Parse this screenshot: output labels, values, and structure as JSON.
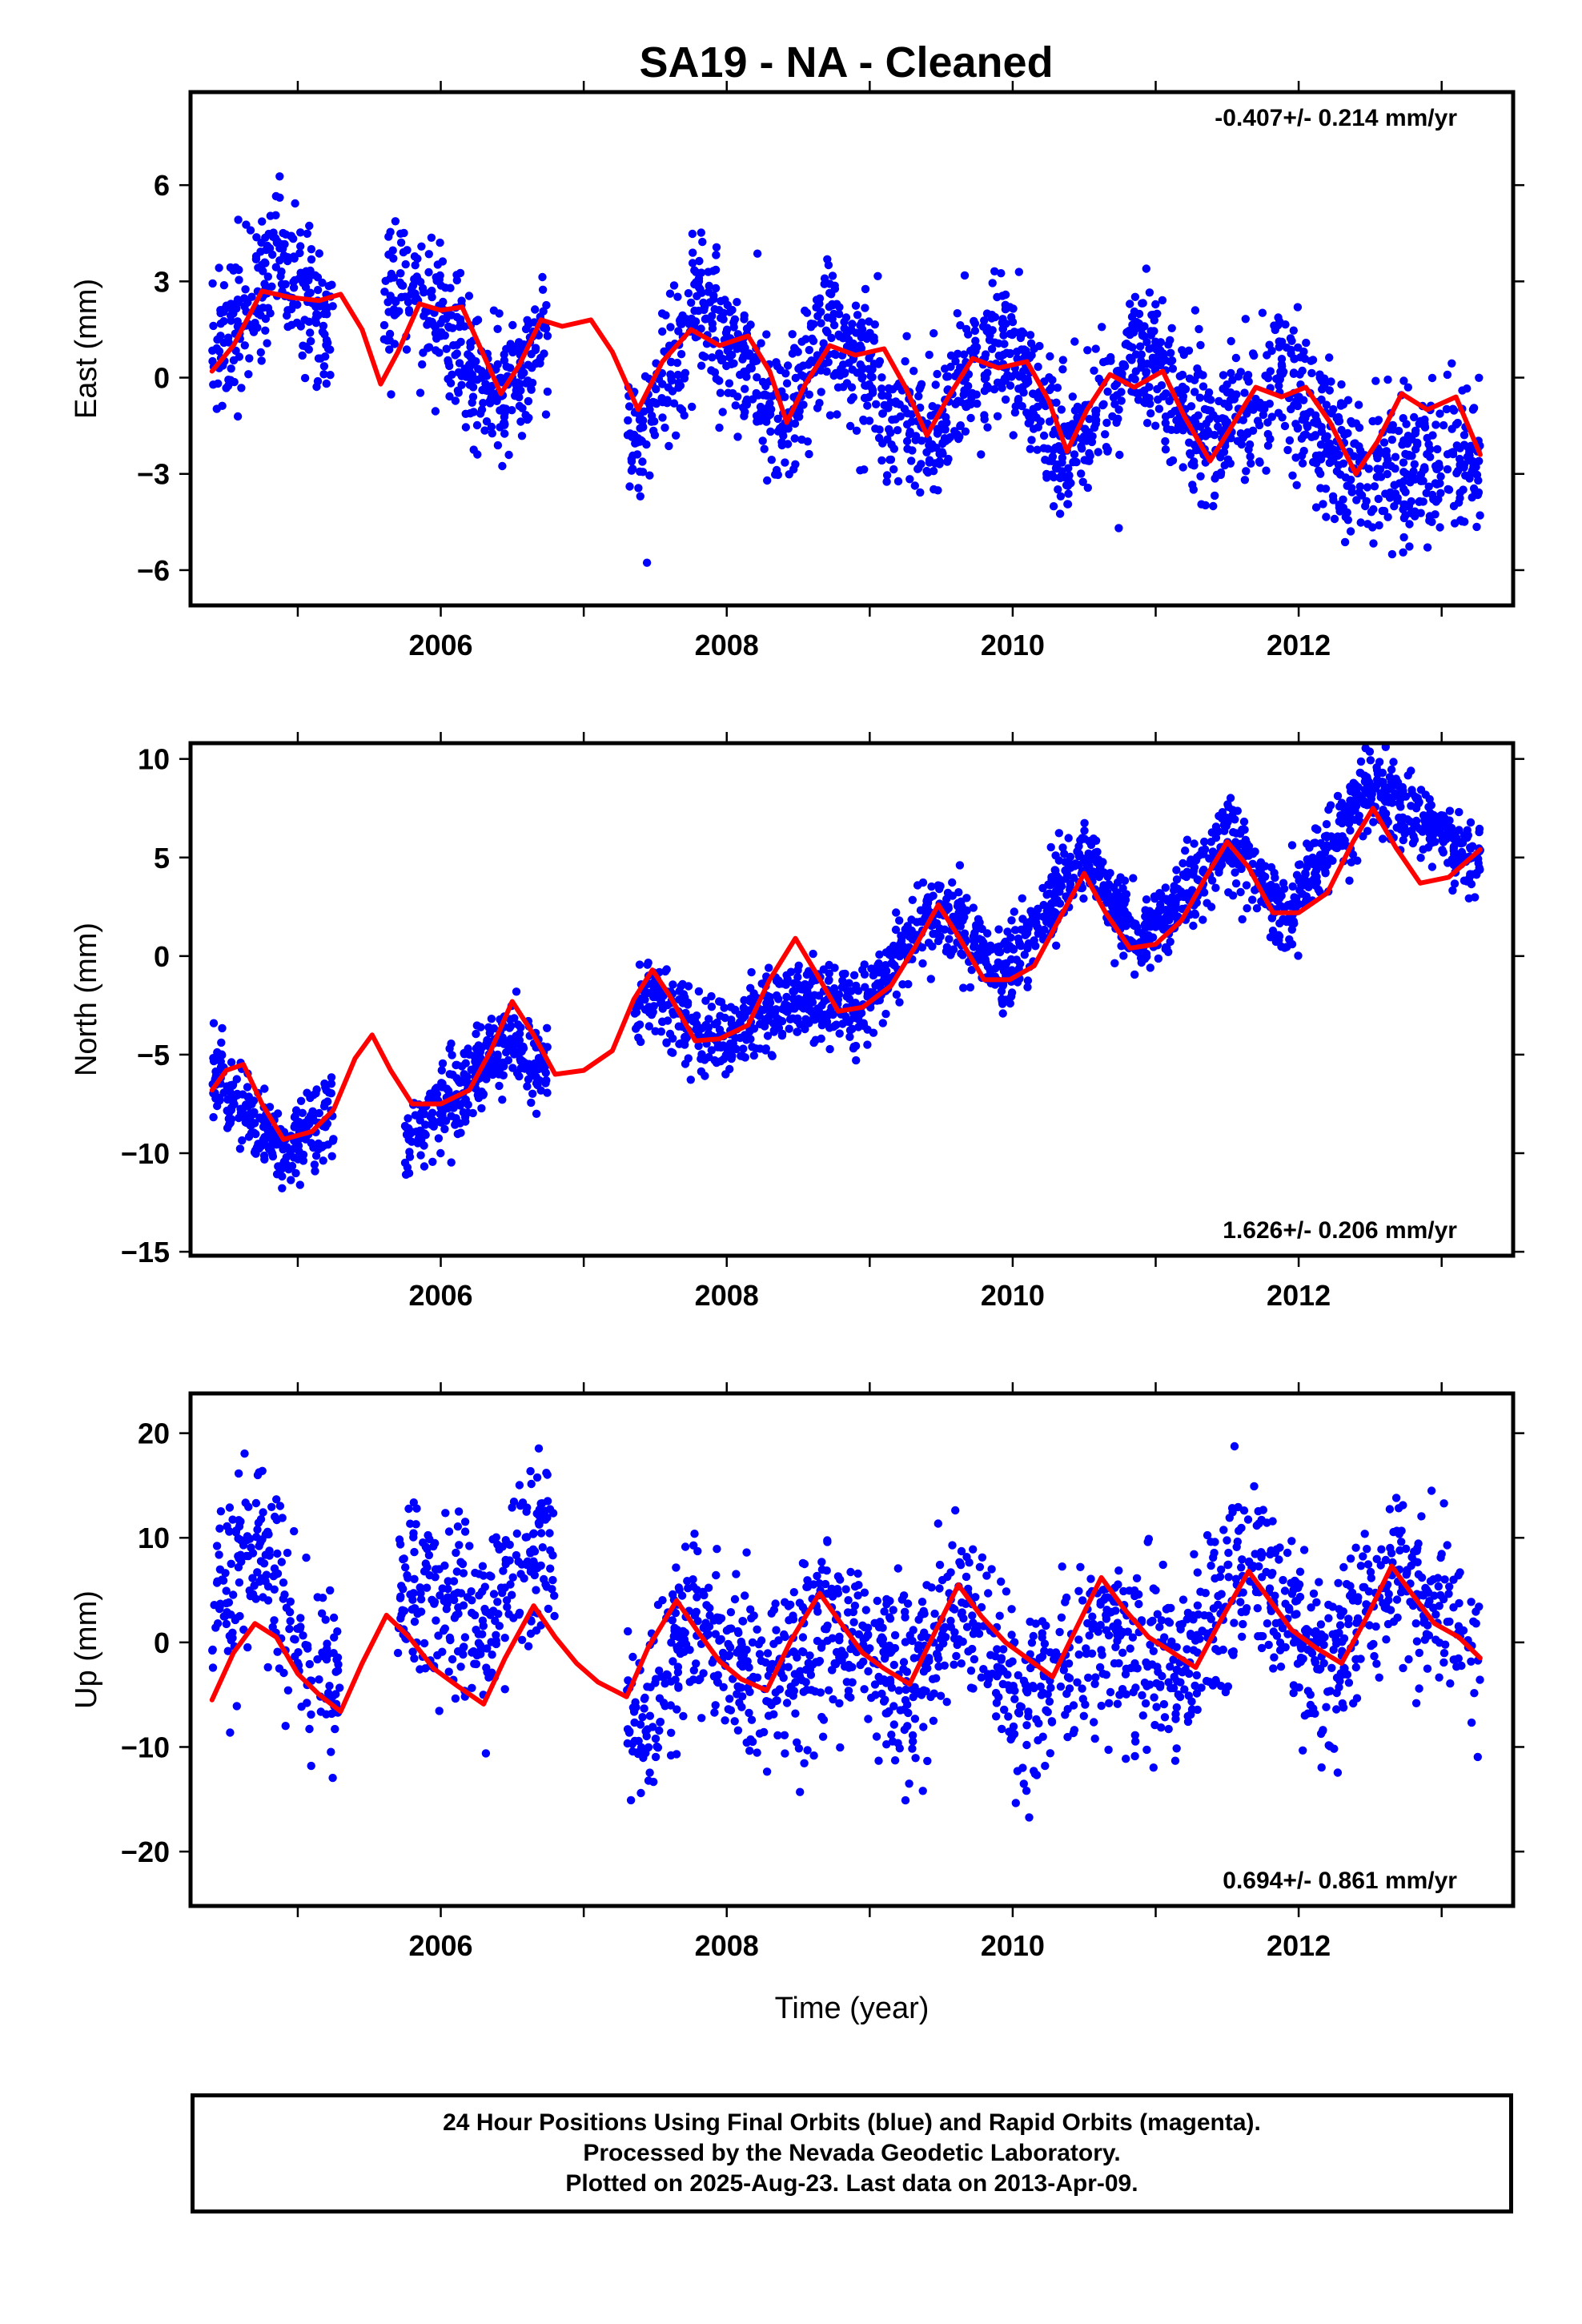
{
  "title": "SA19  - NA - Cleaned",
  "footer": {
    "line1": "24 Hour Positions Using Final Orbits (blue) and Rapid Orbits (magenta).",
    "line2": "Processed by the Nevada Geodetic Laboratory.",
    "line3": "Plotted on 2025-Aug-23. Last data on 2013-Apr-09."
  },
  "colors": {
    "points": "#0000ff",
    "model": "#ff0000",
    "axes": "#000000"
  },
  "chart_data": [
    {
      "type": "scatter",
      "ylabel": "East (mm)",
      "xlabel": "",
      "rate_label": "-0.407+/- 0.214 mm/yr",
      "rate_position": "top-right",
      "xlim": [
        2004.25,
        2013.5
      ],
      "ylim": [
        -7.1,
        8.9
      ],
      "xticks": [
        2006,
        2008,
        2010,
        2012
      ],
      "yticks": [
        -6,
        -3,
        0,
        3,
        6
      ],
      "grid": false,
      "data_start": 2004.4,
      "data_end": 2013.27,
      "gaps": [
        [
          2005.25,
          2005.6
        ],
        [
          2006.75,
          2007.3
        ]
      ],
      "rate_mm_per_yr": -0.407,
      "series": [
        {
          "name": "Final Orbits (blue)",
          "kind": "points",
          "approx_trend": [
            [
              2004.4,
              0.5
            ],
            [
              2004.85,
              3.8
            ],
            [
              2005.2,
              1.5
            ],
            [
              2005.8,
              3.2
            ],
            [
              2006.4,
              -0.8
            ],
            [
              2006.7,
              1.0
            ],
            [
              2007.4,
              -2.0
            ],
            [
              2007.8,
              2.5
            ],
            [
              2008.4,
              -1.5
            ],
            [
              2008.7,
              1.8
            ],
            [
              2009.4,
              -2.0
            ],
            [
              2009.9,
              1.2
            ],
            [
              2010.4,
              -2.5
            ],
            [
              2010.9,
              0.8
            ],
            [
              2011.4,
              -2.0
            ],
            [
              2011.9,
              0.0
            ],
            [
              2012.4,
              -3.0
            ],
            [
              2013.27,
              -2.3
            ]
          ]
        },
        {
          "name": "Model",
          "kind": "line",
          "points": [
            [
              2004.4,
              0.2
            ],
            [
              2004.55,
              1.0
            ],
            [
              2004.75,
              2.7
            ],
            [
              2004.95,
              2.5
            ],
            [
              2005.15,
              2.4
            ],
            [
              2005.3,
              2.6
            ],
            [
              2005.45,
              1.5
            ],
            [
              2005.58,
              -0.2
            ],
            [
              2005.7,
              0.8
            ],
            [
              2005.85,
              2.3
            ],
            [
              2006.0,
              2.1
            ],
            [
              2006.15,
              2.2
            ],
            [
              2006.3,
              0.7
            ],
            [
              2006.42,
              -0.5
            ],
            [
              2006.55,
              0.4
            ],
            [
              2006.7,
              1.8
            ],
            [
              2006.85,
              1.6
            ],
            [
              2007.05,
              1.8
            ],
            [
              2007.2,
              0.8
            ],
            [
              2007.38,
              -1.0
            ],
            [
              2007.55,
              0.5
            ],
            [
              2007.75,
              1.5
            ],
            [
              2007.95,
              1.0
            ],
            [
              2008.15,
              1.3
            ],
            [
              2008.3,
              0.2
            ],
            [
              2008.42,
              -1.4
            ],
            [
              2008.55,
              -0.2
            ],
            [
              2008.72,
              1.0
            ],
            [
              2008.9,
              0.7
            ],
            [
              2009.1,
              0.9
            ],
            [
              2009.25,
              -0.3
            ],
            [
              2009.4,
              -1.8
            ],
            [
              2009.55,
              -0.6
            ],
            [
              2009.72,
              0.6
            ],
            [
              2009.9,
              0.3
            ],
            [
              2010.1,
              0.5
            ],
            [
              2010.25,
              -0.7
            ],
            [
              2010.38,
              -2.3
            ],
            [
              2010.52,
              -1.0
            ],
            [
              2010.68,
              0.1
            ],
            [
              2010.85,
              -0.3
            ],
            [
              2011.05,
              0.2
            ],
            [
              2011.2,
              -1.2
            ],
            [
              2011.38,
              -2.6
            ],
            [
              2011.52,
              -1.6
            ],
            [
              2011.7,
              -0.3
            ],
            [
              2011.88,
              -0.6
            ],
            [
              2012.05,
              -0.3
            ],
            [
              2012.22,
              -1.4
            ],
            [
              2012.4,
              -3.0
            ],
            [
              2012.55,
              -2.0
            ],
            [
              2012.72,
              -0.5
            ],
            [
              2012.9,
              -1.0
            ],
            [
              2013.1,
              -0.6
            ],
            [
              2013.27,
              -2.4
            ]
          ]
        }
      ]
    },
    {
      "type": "scatter",
      "ylabel": "North (mm)",
      "xlabel": "",
      "rate_label": "1.626+/- 0.206 mm/yr",
      "rate_position": "bottom-right",
      "xlim": [
        2004.25,
        2013.5
      ],
      "ylim": [
        -15.2,
        10.8
      ],
      "xticks": [
        2006,
        2008,
        2010,
        2012
      ],
      "yticks": [
        -15,
        -10,
        -5,
        0,
        5,
        10
      ],
      "grid": false,
      "data_start": 2004.4,
      "data_end": 2013.27,
      "gaps": [
        [
          2005.25,
          2005.75
        ],
        [
          2006.75,
          2007.35
        ]
      ],
      "rate_mm_per_yr": 1.626,
      "series": [
        {
          "name": "Final Orbits (blue)",
          "kind": "points",
          "approx_trend": [
            [
              2004.4,
              -6.0
            ],
            [
              2004.9,
              -10.0
            ],
            [
              2005.2,
              -8.0
            ],
            [
              2005.8,
              -9.0
            ],
            [
              2006.5,
              -4.0
            ],
            [
              2006.7,
              -6.0
            ],
            [
              2007.5,
              -2.0
            ],
            [
              2007.9,
              -4.5
            ],
            [
              2008.5,
              -2.0
            ],
            [
              2008.9,
              -3.0
            ],
            [
              2009.5,
              2.5
            ],
            [
              2009.9,
              -1.0
            ],
            [
              2010.5,
              5.0
            ],
            [
              2010.9,
              0.5
            ],
            [
              2011.5,
              6.0
            ],
            [
              2011.9,
              2.0
            ],
            [
              2012.5,
              8.5
            ],
            [
              2013.27,
              5.0
            ]
          ]
        },
        {
          "name": "Model",
          "kind": "line",
          "points": [
            [
              2004.4,
              -6.8
            ],
            [
              2004.5,
              -5.8
            ],
            [
              2004.62,
              -5.5
            ],
            [
              2004.75,
              -7.5
            ],
            [
              2004.9,
              -9.3
            ],
            [
              2005.1,
              -8.9
            ],
            [
              2005.25,
              -7.8
            ],
            [
              2005.4,
              -5.2
            ],
            [
              2005.52,
              -4.0
            ],
            [
              2005.65,
              -5.8
            ],
            [
              2005.8,
              -7.5
            ],
            [
              2006.0,
              -7.5
            ],
            [
              2006.2,
              -6.8
            ],
            [
              2006.35,
              -4.8
            ],
            [
              2006.5,
              -2.3
            ],
            [
              2006.65,
              -4.0
            ],
            [
              2006.8,
              -6.0
            ],
            [
              2007.0,
              -5.8
            ],
            [
              2007.2,
              -4.8
            ],
            [
              2007.35,
              -2.2
            ],
            [
              2007.48,
              -0.7
            ],
            [
              2007.6,
              -2.0
            ],
            [
              2007.78,
              -4.3
            ],
            [
              2007.95,
              -4.2
            ],
            [
              2008.15,
              -3.5
            ],
            [
              2008.3,
              -1.2
            ],
            [
              2008.48,
              0.9
            ],
            [
              2008.62,
              -0.8
            ],
            [
              2008.78,
              -2.8
            ],
            [
              2008.95,
              -2.6
            ],
            [
              2009.15,
              -1.5
            ],
            [
              2009.32,
              0.5
            ],
            [
              2009.48,
              2.6
            ],
            [
              2009.62,
              1.0
            ],
            [
              2009.8,
              -1.2
            ],
            [
              2009.98,
              -1.2
            ],
            [
              2010.15,
              -0.5
            ],
            [
              2010.32,
              1.8
            ],
            [
              2010.5,
              4.2
            ],
            [
              2010.65,
              2.2
            ],
            [
              2010.82,
              0.4
            ],
            [
              2011.0,
              0.6
            ],
            [
              2011.18,
              1.8
            ],
            [
              2011.35,
              4.0
            ],
            [
              2011.5,
              5.8
            ],
            [
              2011.65,
              4.5
            ],
            [
              2011.82,
              2.2
            ],
            [
              2012.0,
              2.2
            ],
            [
              2012.2,
              3.2
            ],
            [
              2012.38,
              5.8
            ],
            [
              2012.52,
              7.5
            ],
            [
              2012.68,
              5.5
            ],
            [
              2012.85,
              3.7
            ],
            [
              2013.05,
              4.0
            ],
            [
              2013.27,
              5.4
            ]
          ]
        }
      ]
    },
    {
      "type": "scatter",
      "ylabel": "Up (mm)",
      "xlabel": "Time (year)",
      "rate_label": "0.694+/- 0.861 mm/yr",
      "rate_position": "bottom-right",
      "xlim": [
        2004.25,
        2013.5
      ],
      "ylim": [
        -25.2,
        23.8
      ],
      "xticks": [
        2006,
        2008,
        2010,
        2012
      ],
      "yticks": [
        -20,
        -10,
        0,
        10,
        20
      ],
      "grid": false,
      "data_start": 2004.4,
      "data_end": 2013.27,
      "gaps": [
        [
          2005.3,
          2005.7
        ],
        [
          2006.8,
          2007.3
        ]
      ],
      "rate_mm_per_yr": 0.694,
      "series": [
        {
          "name": "Final Orbits (blue)",
          "kind": "points",
          "approx_trend": [
            [
              2004.4,
              4.0
            ],
            [
              2004.7,
              10.0
            ],
            [
              2005.1,
              -4.0
            ],
            [
              2005.8,
              5.0
            ],
            [
              2006.3,
              2.0
            ],
            [
              2006.7,
              10.0
            ],
            [
              2007.4,
              -10.0
            ],
            [
              2007.7,
              2.0
            ],
            [
              2008.3,
              -4.0
            ],
            [
              2008.7,
              2.0
            ],
            [
              2009.3,
              -4.0
            ],
            [
              2009.6,
              4.0
            ],
            [
              2010.1,
              -6.0
            ],
            [
              2010.6,
              2.0
            ],
            [
              2011.2,
              -2.0
            ],
            [
              2011.7,
              8.0
            ],
            [
              2012.2,
              -4.0
            ],
            [
              2012.7,
              8.0
            ],
            [
              2013.27,
              -2.0
            ]
          ]
        },
        {
          "name": "Model",
          "kind": "line",
          "points": [
            [
              2004.4,
              -5.5
            ],
            [
              2004.55,
              -1.0
            ],
            [
              2004.7,
              1.8
            ],
            [
              2004.85,
              0.5
            ],
            [
              2005.0,
              -3.0
            ],
            [
              2005.15,
              -5.0
            ],
            [
              2005.3,
              -6.6
            ],
            [
              2005.45,
              -2.0
            ],
            [
              2005.62,
              2.6
            ],
            [
              2005.78,
              0.5
            ],
            [
              2005.95,
              -2.5
            ],
            [
              2006.12,
              -4.2
            ],
            [
              2006.3,
              -5.9
            ],
            [
              2006.45,
              -1.5
            ],
            [
              2006.65,
              3.5
            ],
            [
              2006.8,
              0.5
            ],
            [
              2006.95,
              -2.0
            ],
            [
              2007.1,
              -3.8
            ],
            [
              2007.3,
              -5.2
            ],
            [
              2007.45,
              -0.5
            ],
            [
              2007.65,
              4.0
            ],
            [
              2007.8,
              1.0
            ],
            [
              2007.95,
              -1.8
            ],
            [
              2008.1,
              -3.5
            ],
            [
              2008.28,
              -4.6
            ],
            [
              2008.45,
              0.2
            ],
            [
              2008.65,
              4.7
            ],
            [
              2008.8,
              1.8
            ],
            [
              2008.95,
              -1.0
            ],
            [
              2009.1,
              -2.5
            ],
            [
              2009.28,
              -4.0
            ],
            [
              2009.45,
              0.8
            ],
            [
              2009.62,
              5.5
            ],
            [
              2009.78,
              2.5
            ],
            [
              2009.95,
              0.0
            ],
            [
              2010.1,
              -1.5
            ],
            [
              2010.28,
              -3.3
            ],
            [
              2010.45,
              1.5
            ],
            [
              2010.62,
              6.2
            ],
            [
              2010.78,
              3.2
            ],
            [
              2010.95,
              0.5
            ],
            [
              2011.1,
              -0.8
            ],
            [
              2011.28,
              -2.4
            ],
            [
              2011.45,
              2.0
            ],
            [
              2011.65,
              6.8
            ],
            [
              2011.8,
              4.0
            ],
            [
              2011.95,
              1.2
            ],
            [
              2012.12,
              -0.5
            ],
            [
              2012.3,
              -2.0
            ],
            [
              2012.48,
              2.5
            ],
            [
              2012.65,
              7.3
            ],
            [
              2012.8,
              4.5
            ],
            [
              2012.95,
              1.8
            ],
            [
              2013.12,
              0.5
            ],
            [
              2013.27,
              -1.5
            ]
          ]
        }
      ]
    }
  ]
}
